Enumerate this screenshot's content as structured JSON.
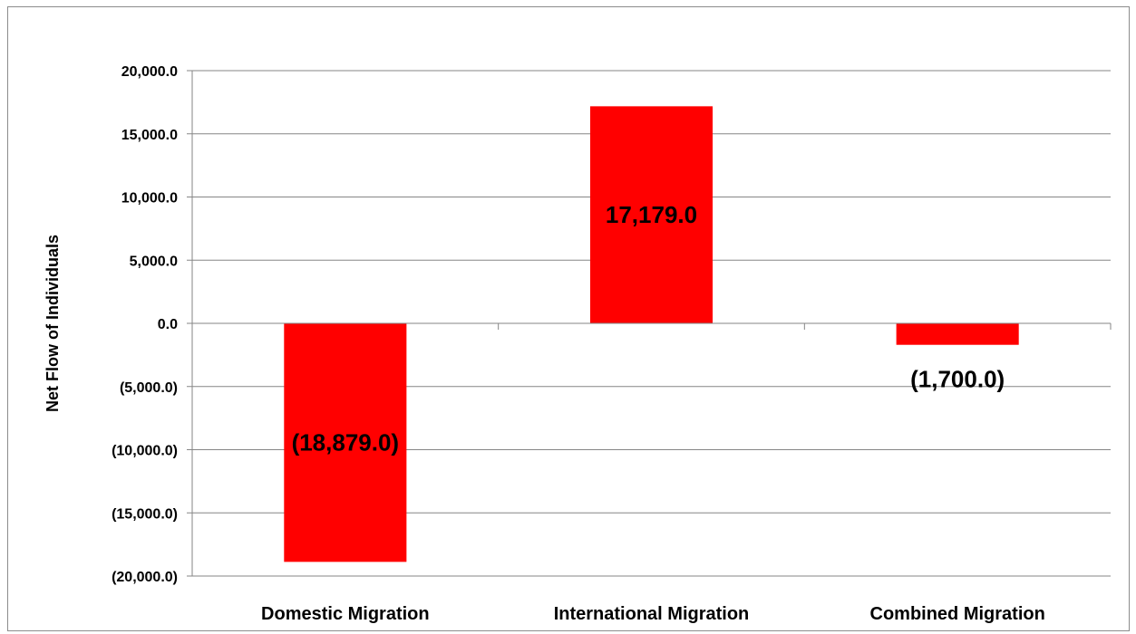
{
  "chart_data": {
    "type": "bar",
    "categories": [
      "Domestic Migration",
      "International Migration",
      "Combined Migration"
    ],
    "values": [
      -18879.0,
      17179.0,
      -1700.0
    ],
    "data_labels": [
      "(18,879.0)",
      "17,179.0",
      "(1,700.0)"
    ],
    "title": "",
    "xlabel": "",
    "ylabel": "Net Flow of Individuals",
    "ylim": [
      -20000,
      20000
    ],
    "yticks": [
      20000,
      15000,
      10000,
      5000,
      0,
      -5000,
      -10000,
      -15000,
      -20000
    ],
    "ytick_labels": [
      "20,000.0",
      "15,000.0",
      "10,000.0",
      "5,000.0",
      "0.0",
      "(5,000.0)",
      "(10,000.0)",
      "(15,000.0)",
      "(20,000.0)"
    ],
    "grid": true,
    "legend": "none",
    "bar_color": "#ff0000",
    "gridline_color": "#868686"
  }
}
